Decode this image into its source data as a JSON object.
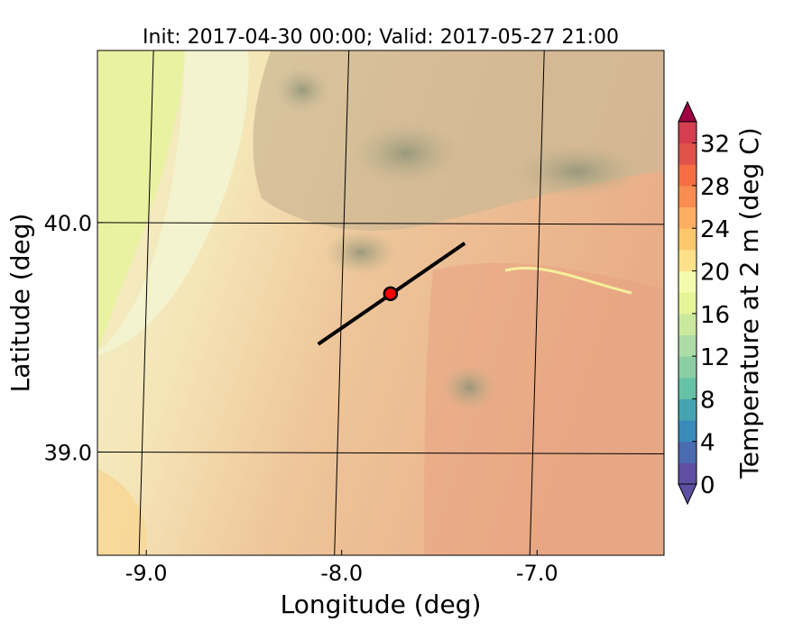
{
  "chart_data": {
    "type": "heatmap",
    "title": "Init: 2017-04-30 00:00; Valid: 2017-05-27 21:00",
    "xlabel": "Longitude (deg)",
    "ylabel": "Latitude (deg)",
    "xlim": [
      -9.25,
      -6.35
    ],
    "ylim": [
      38.55,
      40.75
    ],
    "x_ticks": [
      {
        "value": -9.0,
        "label": "-9.0"
      },
      {
        "value": -8.0,
        "label": "-8.0"
      },
      {
        "value": -7.0,
        "label": "-7.0"
      }
    ],
    "y_ticks": [
      {
        "value": 39.0,
        "label": "39.0"
      },
      {
        "value": 40.0,
        "label": "40.0"
      }
    ],
    "colorbar": {
      "label": "Temperature at 2 m (deg C)",
      "min": 0,
      "max": 34,
      "step": 2,
      "extend": "both",
      "tick_labels": [
        "0",
        "4",
        "8",
        "12",
        "16",
        "20",
        "24",
        "28",
        "32"
      ],
      "colors": [
        "#5e4fa2",
        "#4a6bb0",
        "#3a8bbb",
        "#46a4b2",
        "#66c2a5",
        "#8ccfa4",
        "#abdda4",
        "#cbe99d",
        "#e6f598",
        "#f5fbae",
        "#fee08b",
        "#fdc86b",
        "#fdae61",
        "#f88c51",
        "#f46d43",
        "#e0524a",
        "#d53e4f",
        "#9e0142"
      ]
    },
    "transect": {
      "start": [
        -8.12,
        39.47
      ],
      "end": [
        -7.37,
        39.91
      ],
      "color": "#000000"
    },
    "marker": {
      "lon": -7.75,
      "lat": 39.69,
      "color": "#ff0000"
    }
  }
}
